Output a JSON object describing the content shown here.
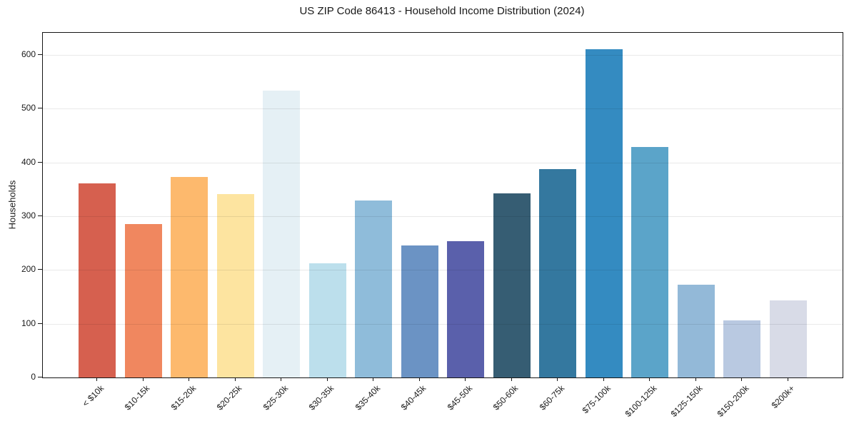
{
  "chart": {
    "title": "US ZIP Code 86413 - Household Income Distribution (2024)",
    "ylabel": "Households"
  },
  "chart_data": {
    "type": "bar",
    "title": "US ZIP Code 86413 - Household Income Distribution (2024)",
    "xlabel": "",
    "ylabel": "Households",
    "categories": [
      "< $10k",
      "$10-15k",
      "$15-20k",
      "$20-25k",
      "$25-30k",
      "$30-35k",
      "$35-40k",
      "$40-45k",
      "$45-50k",
      "$50-60k",
      "$60-75k",
      "$75-100k",
      "$100-125k",
      "$125-150k",
      "$150-200k",
      "$200k+"
    ],
    "values": [
      361,
      285,
      373,
      341,
      533,
      212,
      329,
      246,
      253,
      342,
      387,
      611,
      429,
      173,
      106,
      143
    ],
    "bar_colors": [
      "#d6604f",
      "#f0875f",
      "#fdb96d",
      "#fde4a0",
      "#e5f0f5",
      "#bcdfec",
      "#8fbcda",
      "#6b93c4",
      "#5a60ab",
      "#365d73",
      "#34789f",
      "#348bc1",
      "#5ba4c9",
      "#93b9d8",
      "#b9c9e1",
      "#d8dbe7"
    ],
    "yticks": [
      0,
      100,
      200,
      300,
      400,
      500,
      600
    ],
    "ylim": [
      0,
      641
    ],
    "grid": "horizontal",
    "legend": "none",
    "axis_color": "#161616",
    "grid_color": "rgba(0,0,0,0.085)",
    "background_color": "#ffffff",
    "x_label_rotation_deg": 45
  }
}
